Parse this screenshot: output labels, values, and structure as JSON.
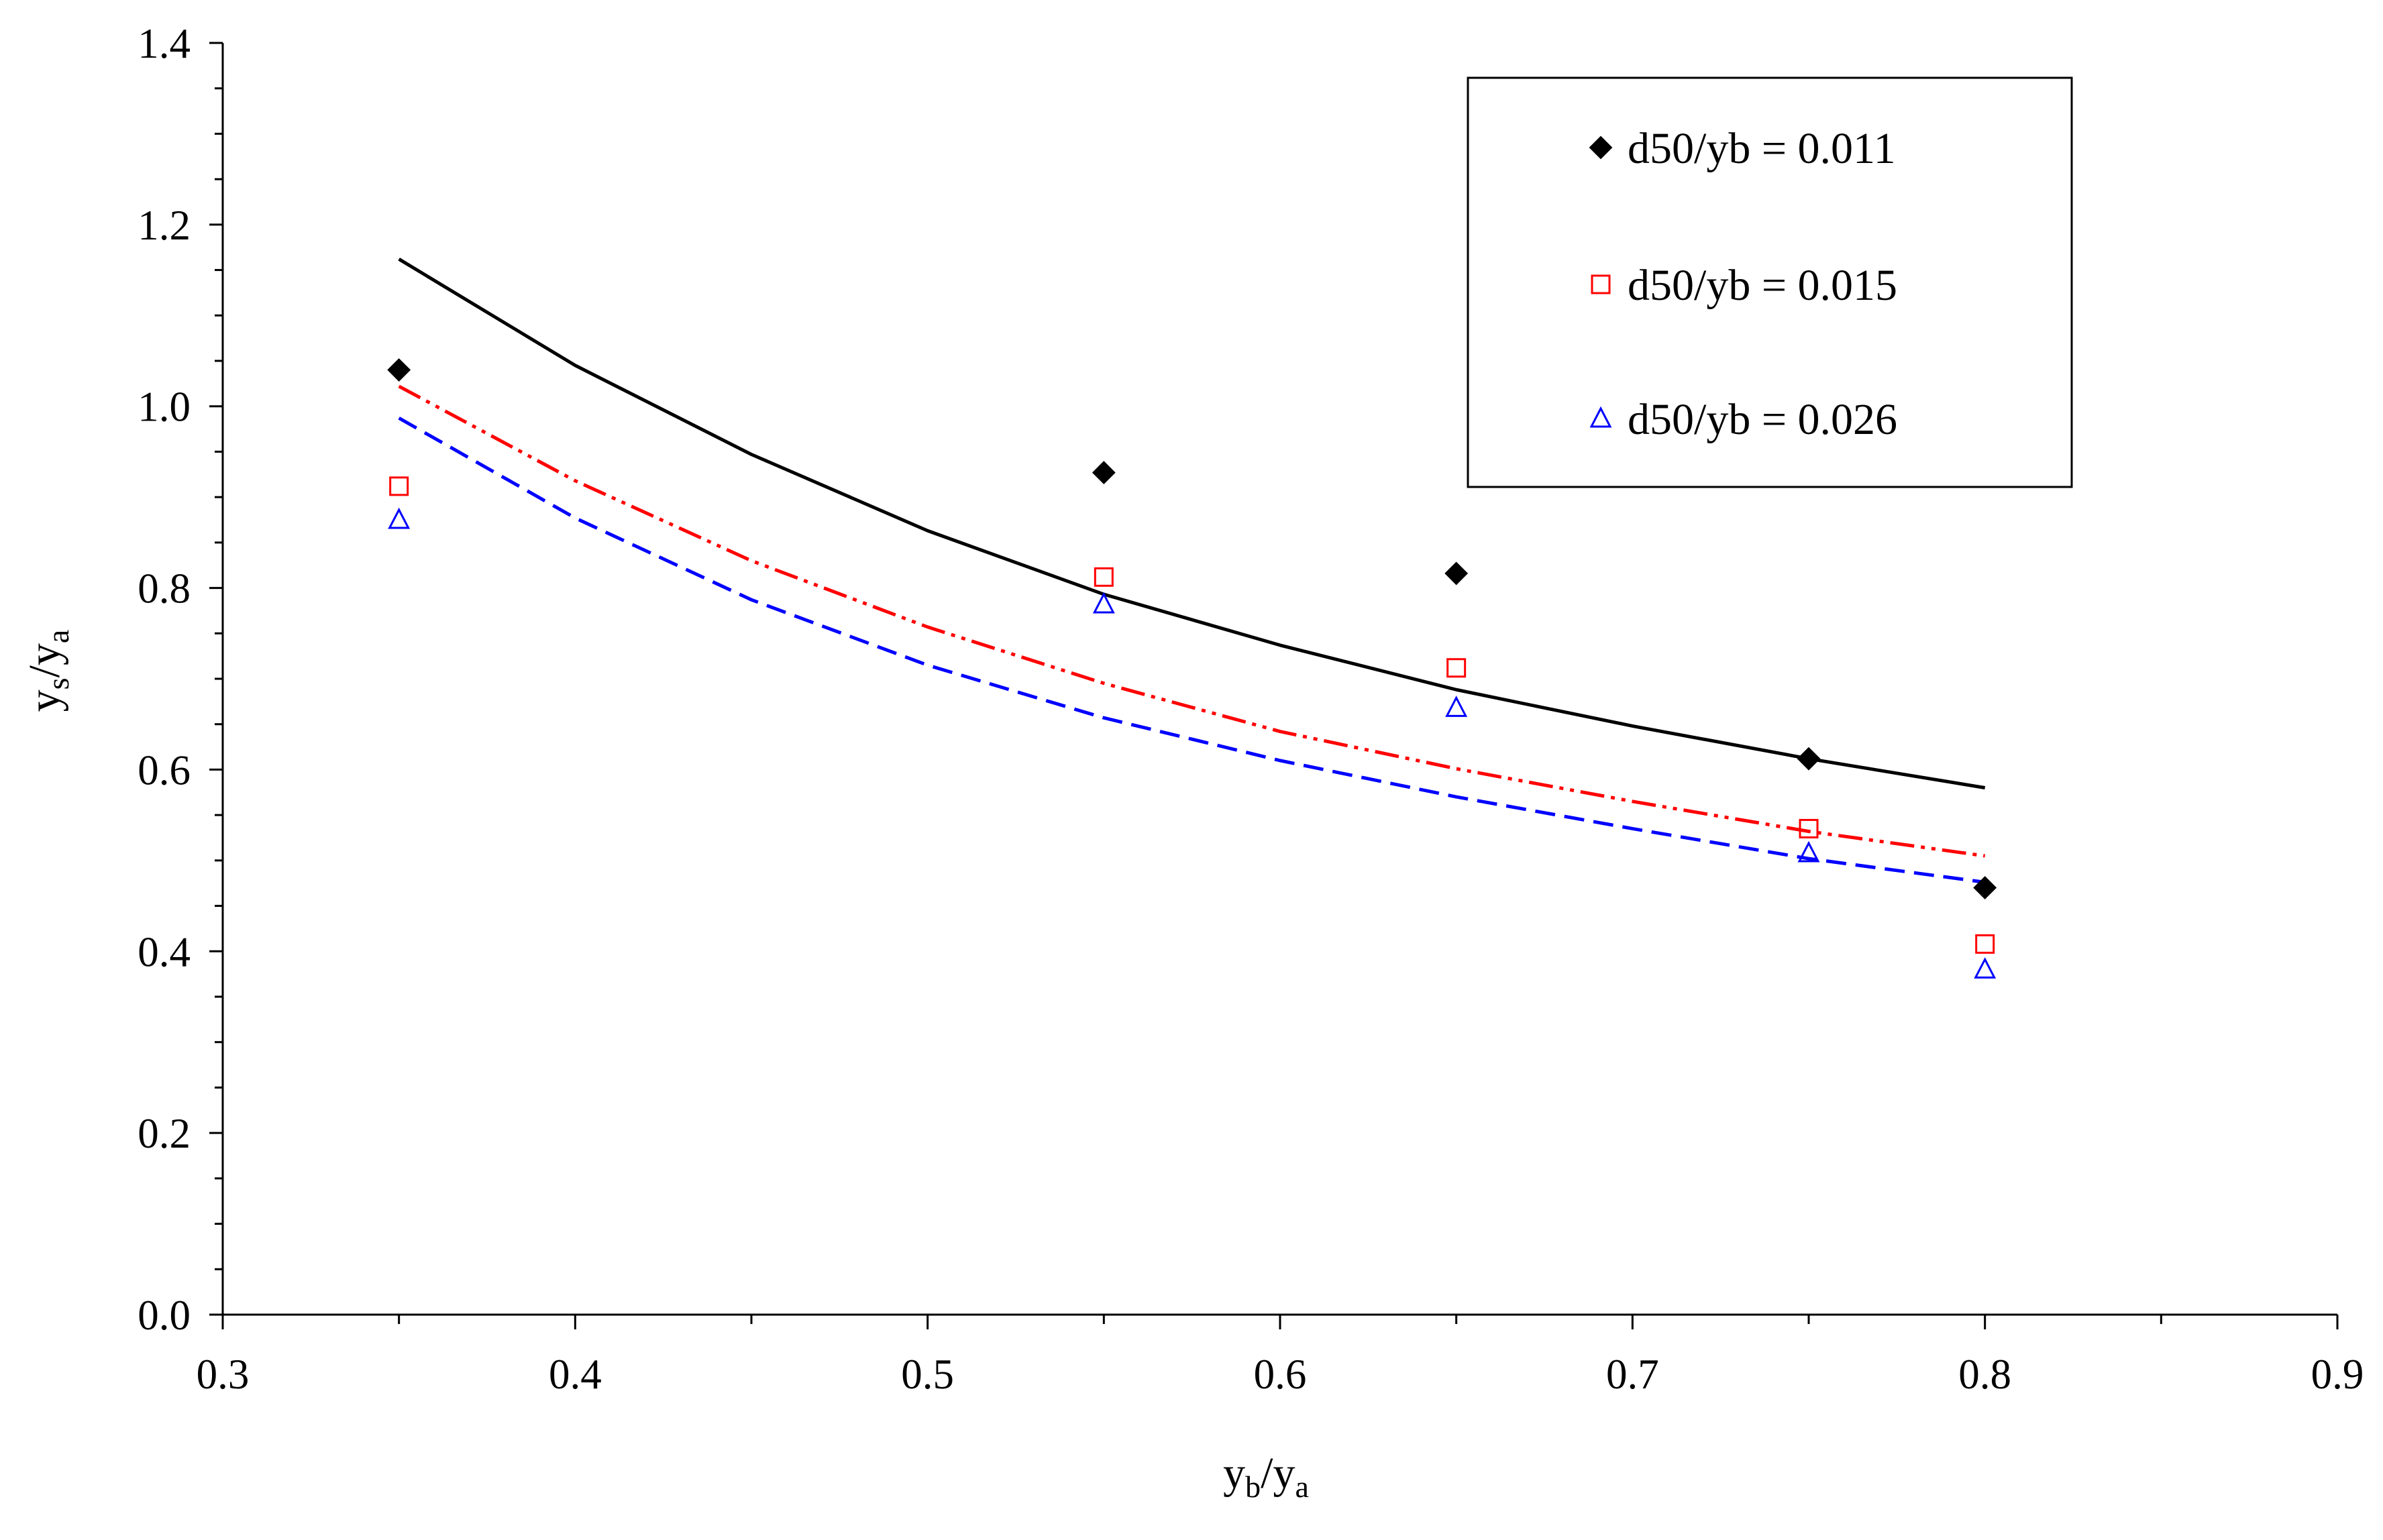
{
  "chart_data": {
    "type": "scatter",
    "title": "",
    "xlabel": {
      "main": "y",
      "sub1": "b",
      "slash": "/y",
      "sub2": "a"
    },
    "ylabel": {
      "main": "y",
      "sub1": "s",
      "slash": "/y",
      "sub2": "a"
    },
    "xlim": [
      0.3,
      0.9
    ],
    "ylim": [
      0.0,
      1.4
    ],
    "x_major_ticks": [
      0.3,
      0.4,
      0.5,
      0.6,
      0.7,
      0.8,
      0.9
    ],
    "x_tick_labels": [
      "0.3",
      "0.4",
      "0.5",
      "0.6",
      "0.7",
      "0.8",
      "0.9"
    ],
    "y_major_ticks": [
      0.0,
      0.2,
      0.4,
      0.6,
      0.8,
      1.0,
      1.2,
      1.4
    ],
    "y_tick_labels": [
      "0.0",
      "0.2",
      "0.4",
      "0.6",
      "0.8",
      "1.0",
      "1.2",
      "1.4"
    ],
    "grid": false,
    "legend_position": "top-right",
    "series": [
      {
        "name": "d50/yb = 0.011",
        "marker": "diamond-filled",
        "color": "#000000",
        "x": [
          0.35,
          0.55,
          0.65,
          0.75,
          0.8
        ],
        "y": [
          1.04,
          0.927,
          0.816,
          0.612,
          0.47
        ],
        "fit": {
          "style": "solid",
          "x": [
            0.35,
            0.4,
            0.45,
            0.5,
            0.55,
            0.6,
            0.65,
            0.7,
            0.75,
            0.8
          ],
          "y": [
            1.162,
            1.045,
            0.947,
            0.863,
            0.793,
            0.737,
            0.688,
            0.648,
            0.612,
            0.58
          ]
        }
      },
      {
        "name": "d50/yb = 0.015",
        "marker": "square-open",
        "color": "#ff0000",
        "x": [
          0.35,
          0.55,
          0.65,
          0.75,
          0.8
        ],
        "y": [
          0.912,
          0.812,
          0.712,
          0.535,
          0.408
        ],
        "fit": {
          "style": "dash-dot-dot",
          "x": [
            0.35,
            0.4,
            0.45,
            0.5,
            0.55,
            0.6,
            0.65,
            0.7,
            0.75,
            0.8
          ],
          "y": [
            1.022,
            0.918,
            0.83,
            0.757,
            0.695,
            0.642,
            0.601,
            0.565,
            0.532,
            0.505
          ]
        }
      },
      {
        "name": "d50/yb = 0.026",
        "marker": "triangle-open",
        "color": "#0000ff",
        "x": [
          0.35,
          0.55,
          0.65,
          0.75,
          0.8
        ],
        "y": [
          0.875,
          0.782,
          0.668,
          0.508,
          0.38
        ],
        "fit": {
          "style": "dashed",
          "x": [
            0.35,
            0.4,
            0.45,
            0.5,
            0.55,
            0.6,
            0.65,
            0.7,
            0.75,
            0.8
          ],
          "y": [
            0.987,
            0.877,
            0.787,
            0.715,
            0.657,
            0.61,
            0.57,
            0.535,
            0.502,
            0.476
          ]
        }
      }
    ]
  }
}
